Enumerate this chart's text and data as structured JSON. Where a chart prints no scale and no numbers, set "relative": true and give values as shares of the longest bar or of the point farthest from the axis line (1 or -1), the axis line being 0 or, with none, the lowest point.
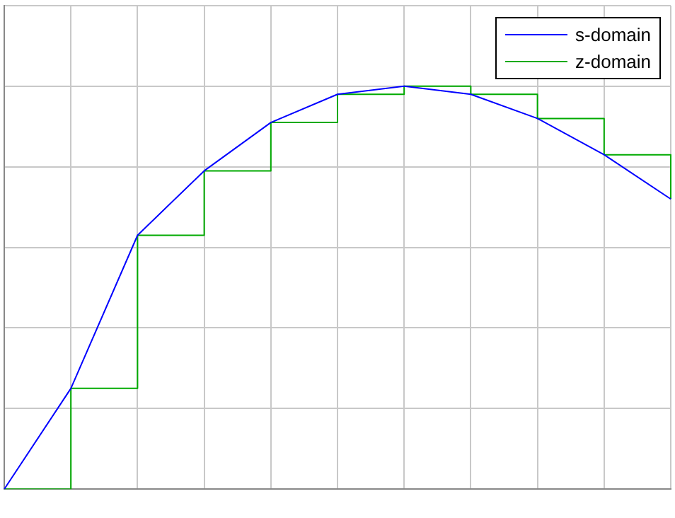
{
  "chart_data": {
    "type": "line",
    "relative": true,
    "categories": [
      null,
      null,
      null,
      null,
      null,
      null,
      null,
      null,
      null,
      null,
      null
    ],
    "series": [
      {
        "name": "s-domain",
        "color": "#0000ff",
        "values": [
          0,
          0.25,
          0.63,
          0.79,
          0.91,
          0.98,
          1,
          0.98,
          0.92,
          0.83,
          0.72
        ]
      },
      {
        "name": "z-domain",
        "type": "step",
        "color": "#00aa00",
        "values": [
          0,
          0.25,
          0.63,
          0.79,
          0.91,
          0.98,
          1,
          0.98,
          0.92,
          0.83,
          0.72
        ]
      }
    ],
    "grid": true,
    "legend": "top right",
    "marker": "none",
    "line_style": "solid"
  }
}
